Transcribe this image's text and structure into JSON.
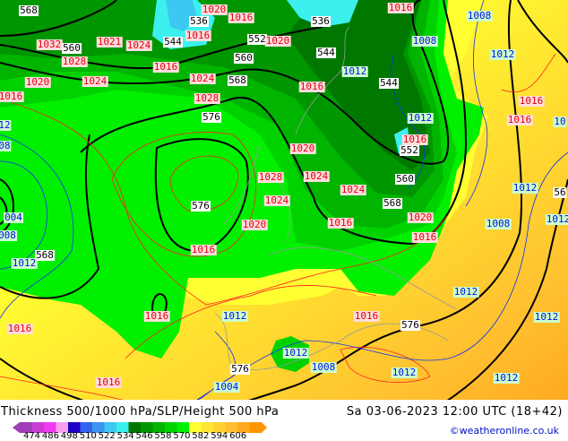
{
  "title": "Thickness 500/1000 hPa/SLP/Height 500 hPa",
  "datetime": "Sa 03-06-2023 12:00 UTC (18+42)",
  "credit": "©weatheronline.co.uk",
  "colorbar": {
    "ticks": [
      "474",
      "486",
      "498",
      "510",
      "522",
      "534",
      "546",
      "558",
      "570",
      "582",
      "594",
      "606"
    ],
    "colors": [
      "#a03cb4",
      "#c83cd2",
      "#f03cf0",
      "#f8a0f0",
      "#1e00c8",
      "#3264f0",
      "#3c96f0",
      "#3cc8f0",
      "#3cf0f0",
      "#007800",
      "#009600",
      "#00b400",
      "#00d200",
      "#00f000",
      "#ffff32",
      "#ffe632",
      "#ffd232",
      "#ffbe32",
      "#ffaa1e",
      "#ff9600"
    ]
  },
  "labels": {
    "thickness": [
      "568",
      "536",
      "544",
      "552",
      "560",
      "536",
      "544",
      "560",
      "568",
      "544",
      "576",
      "552",
      "560",
      "576",
      "568",
      "568",
      "576",
      "576",
      "56"
    ],
    "slp_red": [
      "1020",
      "1016",
      "1016",
      "1032",
      "1021",
      "1024",
      "1016",
      "1020",
      "1028",
      "1016",
      "1020",
      "1024",
      "1024",
      "1028",
      "1016",
      "1016",
      "1016",
      "1016",
      "1016",
      "1020",
      "1028",
      "1024",
      "1024",
      "1024",
      "1020",
      "1016",
      "1020",
      "1016",
      "1016",
      "1016",
      "1016",
      "1016",
      "1016"
    ],
    "slp_blue": [
      "1008",
      "1008",
      "1012",
      "1012",
      "1012",
      "12",
      "08",
      "004",
      "008",
      "1012",
      "1012",
      "1008",
      "1012",
      "1012",
      "1012",
      "1012",
      "1008",
      "1012",
      "1012",
      "1004",
      "10",
      "1012"
    ]
  }
}
